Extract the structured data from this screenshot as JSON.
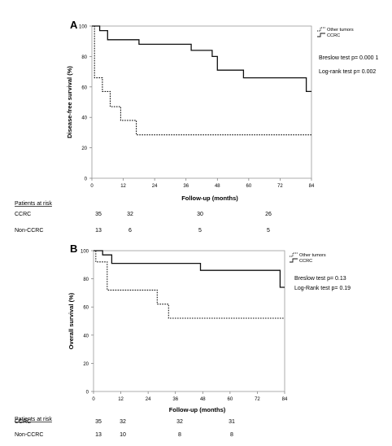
{
  "chart_data": [
    {
      "type": "line",
      "step": true,
      "panel_label": "A",
      "xlabel": "Follow-up (months)",
      "ylabel": "Disease-free  survival    (%)",
      "xlim": [
        0,
        84
      ],
      "ylim": [
        0,
        100
      ],
      "xticks": [
        "0",
        "12",
        "24",
        "36",
        "48",
        "60",
        "72",
        "84"
      ],
      "yticks": [
        "0",
        "20",
        "40",
        "60",
        "80",
        "100"
      ],
      "legend_position": "top-right",
      "legend": [
        "Other tumors",
        "CCRC"
      ],
      "annotations": [
        "Breslow test p= 0.000 1",
        "Log-rank test p= 0.002"
      ],
      "series": [
        {
          "name": "Other tumors",
          "style": "dotted",
          "x": [
            0,
            1,
            4,
            7,
            11,
            17,
            84
          ],
          "y": [
            100,
            66,
            57,
            47,
            38,
            28.5,
            28.5
          ]
        },
        {
          "name": "CCRC",
          "style": "solid",
          "x": [
            0,
            3,
            6,
            18,
            38,
            46,
            48,
            58,
            82,
            84
          ],
          "y": [
            100,
            97,
            91,
            88,
            84,
            80,
            71,
            66,
            57,
            57
          ]
        }
      ],
      "risk_table": {
        "title": "Patients at risk",
        "rows": [
          {
            "label": "CCRC",
            "values": [
              "35",
              "32",
              "30",
              "26"
            ]
          },
          {
            "label": "Non-CCRC",
            "values": [
              "13",
              "6",
              "5",
              "5"
            ]
          }
        ]
      }
    },
    {
      "type": "line",
      "step": true,
      "panel_label": "B",
      "xlabel": "Follow-up (months)",
      "ylabel": "Overall survival    (%)",
      "xlim": [
        0,
        84
      ],
      "ylim": [
        0,
        100
      ],
      "xticks": [
        "0",
        "12",
        "24",
        "36",
        "48",
        "60",
        "72",
        "84"
      ],
      "yticks": [
        "0",
        "20",
        "40",
        "60",
        "80",
        "100"
      ],
      "legend_position": "top-right",
      "legend": [
        "Other tumors",
        "CCRC"
      ],
      "annotations": [
        "Breslow test p= 0.13",
        "Log-Rank test p= 0.19"
      ],
      "series": [
        {
          "name": "Other tumors",
          "style": "dotted",
          "x": [
            0,
            1,
            6,
            22,
            28,
            33,
            84
          ],
          "y": [
            100,
            92,
            72,
            72,
            62,
            52,
            52
          ]
        },
        {
          "name": "CCRC",
          "style": "solid",
          "x": [
            0,
            4,
            8,
            47,
            82,
            84
          ],
          "y": [
            100,
            97,
            91,
            86,
            74,
            74
          ]
        }
      ],
      "risk_table": {
        "title": "Patients at risk",
        "rows": [
          {
            "label": "CCRC",
            "values": [
              "35",
              "32",
              "32",
              "31"
            ]
          },
          {
            "label": "Non-CCRC",
            "values": [
              "13",
              "10",
              "8",
              "8"
            ]
          }
        ]
      }
    }
  ]
}
